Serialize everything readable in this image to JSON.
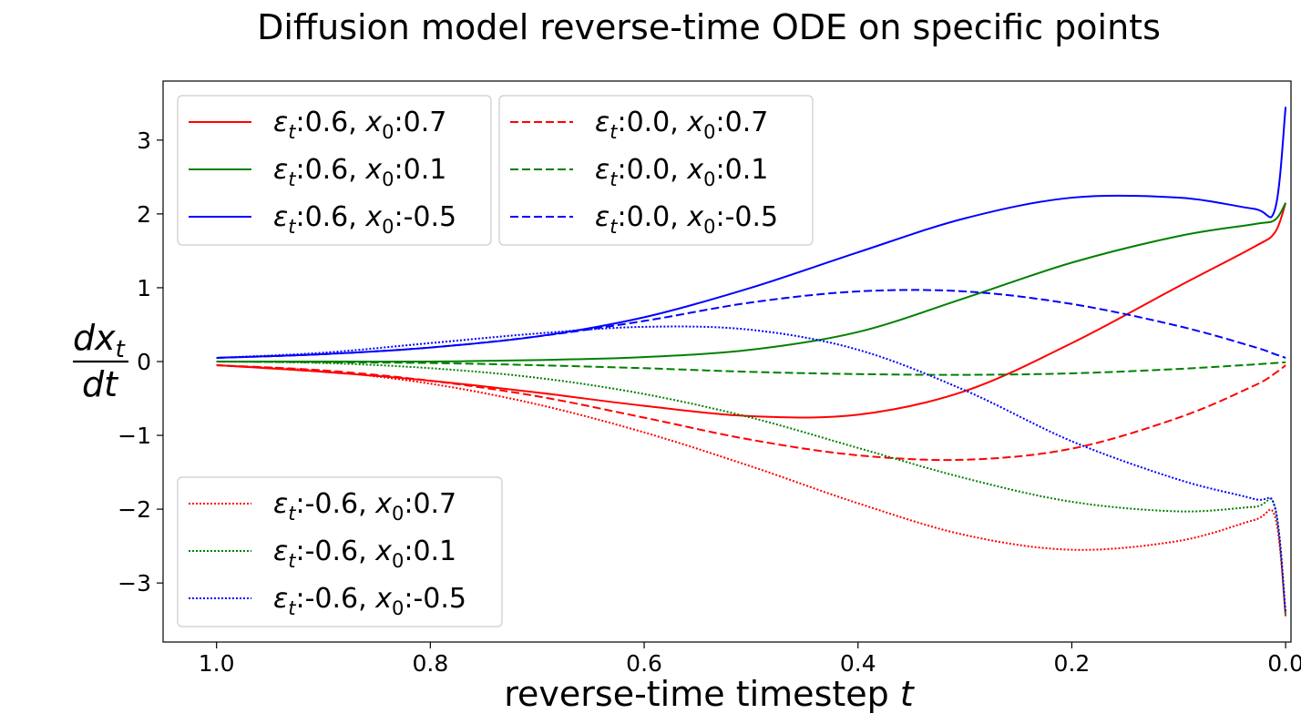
{
  "chart_data": {
    "type": "line",
    "title": "Diffusion model reverse-time ODE on specific points",
    "xlabel": {
      "text": "reverse-time timestep ",
      "var": "t"
    },
    "ylabel": {
      "numerator_var": "dx",
      "numerator_sub": "t",
      "denominator": "dt"
    },
    "xlim": [
      1.05,
      -0.005
    ],
    "ylim": [
      -3.8,
      3.8
    ],
    "x_inverted": true,
    "grid": false,
    "xticks": [
      {
        "value": 1.0,
        "label": "1.0"
      },
      {
        "value": 0.8,
        "label": "0.8"
      },
      {
        "value": 0.6,
        "label": "0.6"
      },
      {
        "value": 0.4,
        "label": "0.4"
      },
      {
        "value": 0.2,
        "label": "0.2"
      },
      {
        "value": 0.0,
        "label": "0.0"
      }
    ],
    "yticks": [
      {
        "value": 3,
        "label": "3"
      },
      {
        "value": 2,
        "label": "2"
      },
      {
        "value": 1,
        "label": "1"
      },
      {
        "value": 0,
        "label": "0"
      },
      {
        "value": -1,
        "label": "−1"
      },
      {
        "value": -2,
        "label": "−2"
      },
      {
        "value": -3,
        "label": "−3"
      }
    ],
    "x": [
      1.0,
      0.9,
      0.8,
      0.7,
      0.6,
      0.5,
      0.4,
      0.3,
      0.2,
      0.1,
      0.03,
      0.01,
      0.0
    ],
    "series": [
      {
        "eps": "0.6",
        "x0": "0.7",
        "color": "#ff0000",
        "style": "solid",
        "y": [
          -0.05,
          -0.14,
          -0.26,
          -0.42,
          -0.6,
          -0.74,
          -0.72,
          -0.4,
          0.25,
          1.02,
          1.55,
          1.75,
          2.15
        ]
      },
      {
        "eps": "0.6",
        "x0": "0.1",
        "color": "#008000",
        "style": "solid",
        "y": [
          0.0,
          0.0,
          0.0,
          0.02,
          0.06,
          0.16,
          0.4,
          0.86,
          1.34,
          1.7,
          1.86,
          1.92,
          2.15
        ]
      },
      {
        "eps": "0.6",
        "x0": "-0.5",
        "color": "#0000ff",
        "style": "solid",
        "y": [
          0.05,
          0.1,
          0.19,
          0.34,
          0.6,
          1.0,
          1.48,
          1.94,
          2.22,
          2.22,
          2.07,
          2.06,
          3.45
        ]
      },
      {
        "eps": "0.0",
        "x0": "0.7",
        "color": "#ff0000",
        "style": "dashed",
        "y": [
          -0.05,
          -0.12,
          -0.26,
          -0.47,
          -0.76,
          -1.06,
          -1.27,
          -1.33,
          -1.18,
          -0.76,
          -0.33,
          -0.16,
          -0.05
        ]
      },
      {
        "eps": "0.0",
        "x0": "0.1",
        "color": "#008000",
        "style": "dashed",
        "y": [
          0.0,
          -0.01,
          -0.02,
          -0.05,
          -0.09,
          -0.14,
          -0.17,
          -0.18,
          -0.16,
          -0.1,
          -0.04,
          -0.02,
          -0.01
        ]
      },
      {
        "eps": "0.0",
        "x0": "-0.5",
        "color": "#0000ff",
        "style": "dashed",
        "y": [
          0.05,
          0.1,
          0.19,
          0.34,
          0.55,
          0.8,
          0.95,
          0.95,
          0.78,
          0.48,
          0.2,
          0.1,
          0.05
        ]
      },
      {
        "eps": "-0.6",
        "x0": "0.7",
        "color": "#ff0000",
        "style": "dotted",
        "y": [
          -0.05,
          -0.13,
          -0.3,
          -0.58,
          -0.96,
          -1.42,
          -1.92,
          -2.35,
          -2.55,
          -2.43,
          -2.15,
          -2.1,
          -3.45
        ]
      },
      {
        "eps": "-0.6",
        "x0": "0.1",
        "color": "#008000",
        "style": "dotted",
        "y": [
          0.0,
          -0.02,
          -0.09,
          -0.22,
          -0.44,
          -0.76,
          -1.17,
          -1.58,
          -1.9,
          -2.03,
          -1.97,
          -1.97,
          -3.45
        ]
      },
      {
        "eps": "-0.6",
        "x0": "-0.5",
        "color": "#0000ff",
        "style": "dotted",
        "y": [
          0.05,
          0.12,
          0.25,
          0.38,
          0.47,
          0.43,
          0.16,
          -0.39,
          -1.08,
          -1.6,
          -1.86,
          -1.98,
          -3.4
        ]
      }
    ],
    "legends": [
      {
        "placement": "top-left",
        "series_index": [
          0,
          1,
          2
        ]
      },
      {
        "placement": "top-center",
        "series_index": [
          3,
          4,
          5
        ]
      },
      {
        "placement": "lower-left",
        "series_index": [
          6,
          7,
          8
        ]
      }
    ]
  }
}
